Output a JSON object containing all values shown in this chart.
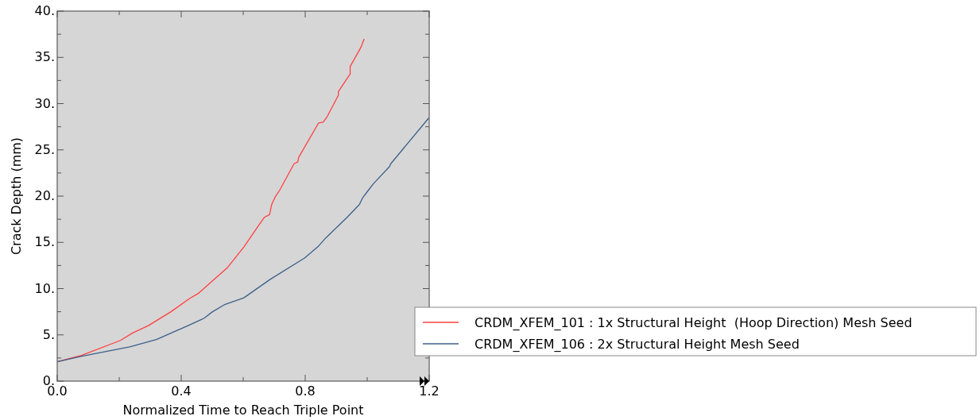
{
  "chart_data": {
    "type": "line",
    "xlabel": "Normalized Time to Reach Triple Point",
    "ylabel": "Crack Depth (mm)",
    "xlim": [
      0,
      1.2
    ],
    "ylim": [
      0,
      40
    ],
    "xticks": [
      {
        "value": 0,
        "label": "0.0"
      },
      {
        "value": 0.2,
        "label": null
      },
      {
        "value": 0.4,
        "label": "0.4"
      },
      {
        "value": 0.6,
        "label": null
      },
      {
        "value": 0.8,
        "label": "0.8"
      },
      {
        "value": 1.0,
        "label": null
      },
      {
        "value": 1.2,
        "label": "1.2"
      }
    ],
    "yticks": [
      {
        "value": 0,
        "label": "0."
      },
      {
        "value": 2.5,
        "label": null
      },
      {
        "value": 5,
        "label": "5."
      },
      {
        "value": 7.5,
        "label": null
      },
      {
        "value": 10,
        "label": "10."
      },
      {
        "value": 12.5,
        "label": null
      },
      {
        "value": 15,
        "label": "15."
      },
      {
        "value": 17.5,
        "label": null
      },
      {
        "value": 20,
        "label": "20."
      },
      {
        "value": 22.5,
        "label": null
      },
      {
        "value": 25,
        "label": "25."
      },
      {
        "value": 27.5,
        "label": null
      },
      {
        "value": 30,
        "label": "30."
      },
      {
        "value": 32.5,
        "label": null
      },
      {
        "value": 35,
        "label": "35."
      },
      {
        "value": 37.5,
        "label": null
      },
      {
        "value": 40,
        "label": "40."
      }
    ],
    "grid": false,
    "legend": "bottom right",
    "marker": "none",
    "line_style": "solid",
    "series": [
      {
        "name": "CRDM_XFEM_101 : 1x Structural Height  (Hoop Direction) Mesh Seed",
        "color": "#ff4040",
        "x": [
          0,
          0.08,
          0.204,
          0.243,
          0.294,
          0.367,
          0.426,
          0.456,
          0.503,
          0.55,
          0.602,
          0.649,
          0.668,
          0.685,
          0.692,
          0.703,
          0.717,
          0.764,
          0.776,
          0.779,
          0.843,
          0.858,
          0.871,
          0.907,
          0.907,
          0.921,
          0.945,
          0.945,
          0.965,
          0.98,
          0.99
        ],
        "values": [
          2.1,
          2.8,
          4.4,
          5.2,
          6.0,
          7.5,
          8.9,
          9.5,
          10.9,
          12.3,
          14.5,
          16.8,
          17.7,
          18.0,
          19.1,
          19.9,
          20.6,
          23.5,
          23.7,
          24.2,
          27.9,
          28.0,
          28.6,
          30.9,
          31.3,
          32.0,
          33.2,
          34.0,
          35.2,
          36.1,
          37.0
        ]
      },
      {
        "name": "CRDM_XFEM_106 : 2x Structural Height Mesh Seed",
        "color": "#3c5f8a",
        "x": [
          0,
          0.08,
          0.234,
          0.32,
          0.422,
          0.474,
          0.501,
          0.542,
          0.602,
          0.687,
          0.798,
          0.843,
          0.867,
          0.935,
          0.975,
          0.985,
          1.003,
          1.019,
          1.072,
          1.076,
          1.2
        ],
        "values": [
          2.1,
          2.7,
          3.7,
          4.5,
          6.0,
          6.8,
          7.5,
          8.3,
          9.0,
          11.0,
          13.3,
          14.6,
          15.5,
          17.7,
          19.1,
          19.8,
          20.6,
          21.3,
          23.2,
          23.5,
          28.5
        ]
      }
    ]
  }
}
